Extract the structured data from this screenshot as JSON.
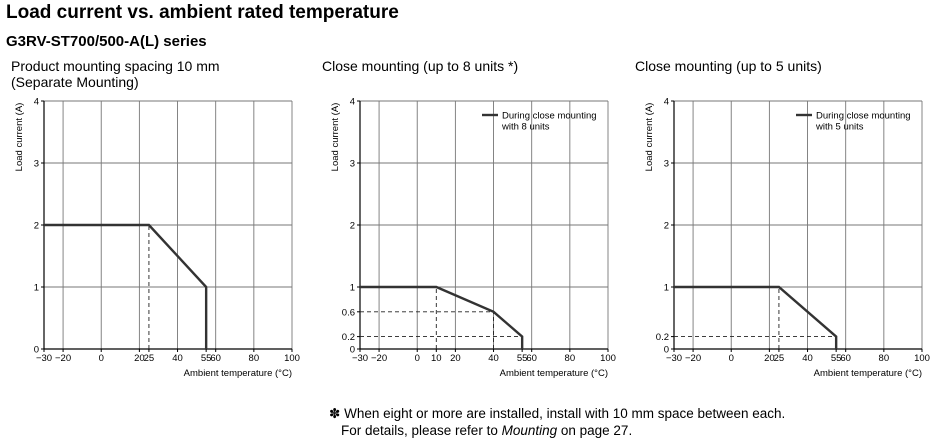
{
  "page": {
    "title": "Load current vs. ambient rated temperature",
    "subtitle": "G3RV-ST700/500-A(L) series",
    "footnote": {
      "mark": "✽",
      "line1": "When eight or more are installed, install with 10 mm space between each.",
      "line2_prefix": "For details, please refer to ",
      "line2_italic": "Mounting",
      "line2_suffix": " on page 27."
    }
  },
  "chart_data": [
    {
      "type": "line",
      "title_lines": [
        "Product mounting spacing 10 mm",
        "(Separate Mounting)"
      ],
      "xlabel": "Ambient temperature (°C)",
      "ylabel": "Load current (A)",
      "xlim": [
        -30,
        100
      ],
      "ylim": [
        0,
        4
      ],
      "xticks": [
        -30,
        -20,
        0,
        20,
        25,
        40,
        55,
        60,
        80,
        100
      ],
      "yticks": [
        0,
        1,
        2,
        3,
        4
      ],
      "grid": true,
      "series": [
        {
          "x": [
            -30,
            25,
            55,
            55
          ],
          "y": [
            2,
            2,
            1,
            0
          ]
        }
      ],
      "dashed_guides": [
        {
          "x": [
            25,
            25
          ],
          "y": [
            0,
            2
          ]
        }
      ],
      "legend": null
    },
    {
      "type": "line",
      "title_lines": [
        "Close mounting (up to 8 units *)"
      ],
      "xlabel": "Ambient temperature (°C)",
      "ylabel": "Load current (A)",
      "xlim": [
        -30,
        100
      ],
      "ylim": [
        0,
        4
      ],
      "xticks": [
        -30,
        -20,
        0,
        10,
        20,
        40,
        55,
        60,
        80,
        100
      ],
      "yticks": [
        0,
        0.2,
        0.6,
        1,
        2,
        3,
        4
      ],
      "grid": true,
      "series": [
        {
          "name": "During close mounting with 8 units",
          "x": [
            -30,
            10,
            40,
            55,
            55
          ],
          "y": [
            1,
            1,
            0.6,
            0.2,
            0
          ]
        }
      ],
      "dashed_guides": [
        {
          "x": [
            10,
            10
          ],
          "y": [
            0,
            1
          ]
        },
        {
          "x": [
            -30,
            40
          ],
          "y": [
            0.6,
            0.6
          ]
        },
        {
          "x": [
            40,
            40
          ],
          "y": [
            0,
            0.6
          ]
        },
        {
          "x": [
            -30,
            55
          ],
          "y": [
            0.2,
            0.2
          ]
        }
      ],
      "legend": {
        "position": "top-right",
        "lines": [
          "During close mounting",
          "with 8 units"
        ]
      }
    },
    {
      "type": "line",
      "title_lines": [
        "Close mounting (up to 5 units)"
      ],
      "xlabel": "Ambient temperature (°C)",
      "ylabel": "Load current (A)",
      "xlim": [
        -30,
        100
      ],
      "ylim": [
        0,
        4
      ],
      "xticks": [
        -30,
        -20,
        0,
        20,
        25,
        40,
        55,
        60,
        80,
        100
      ],
      "yticks": [
        0,
        0.2,
        1,
        2,
        3,
        4
      ],
      "grid": true,
      "series": [
        {
          "name": "During close mounting with 5 units",
          "x": [
            -30,
            25,
            55,
            55
          ],
          "y": [
            1,
            1,
            0.2,
            0
          ]
        }
      ],
      "dashed_guides": [
        {
          "x": [
            25,
            25
          ],
          "y": [
            0,
            1
          ]
        },
        {
          "x": [
            -30,
            55
          ],
          "y": [
            0.2,
            0.2
          ]
        }
      ],
      "legend": {
        "position": "top-right",
        "lines": [
          "During close mounting",
          "with 5 units"
        ]
      }
    }
  ]
}
